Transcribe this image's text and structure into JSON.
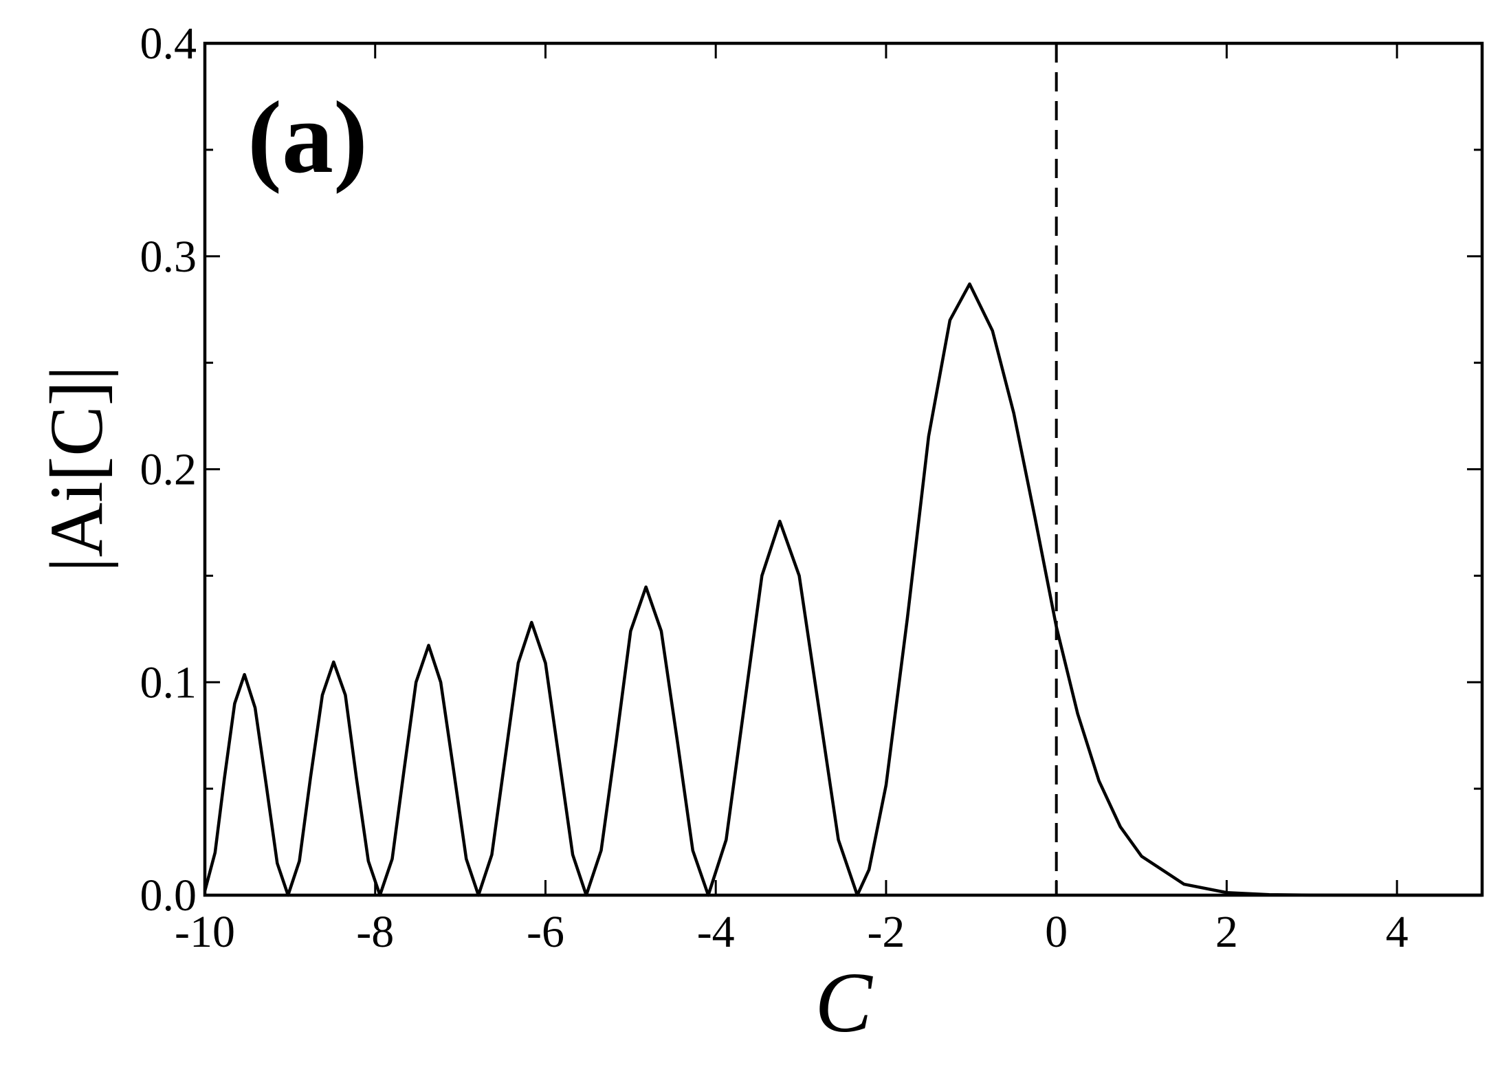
{
  "chart_data": {
    "type": "line",
    "panel_label": "(a)",
    "x_label": "C",
    "y_label": "|Ai[C]|",
    "color": "#000000",
    "x": [
      -10,
      -9.88,
      -9.77,
      -9.65,
      -9.535,
      -9.41,
      -9.28,
      -9.15,
      -9.023,
      -8.89,
      -8.76,
      -8.62,
      -8.488,
      -8.35,
      -8.22,
      -8.08,
      -7.944,
      -7.8,
      -7.66,
      -7.52,
      -7.372,
      -7.23,
      -7.08,
      -6.93,
      -6.787,
      -6.63,
      -6.475,
      -6.32,
      -6.163,
      -6,
      -5.84,
      -5.68,
      -5.521,
      -5.346,
      -5.17,
      -5,
      -4.82,
      -4.64,
      -4.45,
      -4.27,
      -4.088,
      -3.878,
      -3.668,
      -3.458,
      -3.248,
      -3.02,
      -2.79,
      -2.56,
      -2.338,
      -2.2,
      -2,
      -1.75,
      -1.5,
      -1.25,
      -1.019,
      -0.75,
      -0.5,
      -0.25,
      0,
      0.25,
      0.5,
      0.75,
      1,
      1.5,
      2,
      2.5,
      3,
      4,
      5
    ],
    "values": [
      0.002,
      0.02,
      0.055,
      0.09,
      0.1036,
      0.088,
      0.052,
      0.015,
      0,
      0.016,
      0.055,
      0.094,
      0.1095,
      0.094,
      0.055,
      0.016,
      0,
      0.017,
      0.059,
      0.1,
      0.1173,
      0.1,
      0.059,
      0.017,
      0,
      0.019,
      0.064,
      0.109,
      0.1281,
      0.109,
      0.064,
      0.019,
      0,
      0.021,
      0.072,
      0.124,
      0.1447,
      0.124,
      0.072,
      0.021,
      0,
      0.026,
      0.088,
      0.15,
      0.1756,
      0.15,
      0.088,
      0.026,
      0,
      0.012,
      0.0517,
      0.13,
      0.2155,
      0.27,
      0.287,
      0.265,
      0.2263,
      0.177,
      0.126,
      0.0852,
      0.0537,
      0.0322,
      0.0183,
      0.00514,
      0.00122,
      0.00025,
      4e-05,
      0,
      0
    ],
    "xlim": [
      -10,
      5
    ],
    "xticks": [
      -10,
      -8,
      -6,
      -4,
      -2,
      0,
      2,
      4
    ],
    "ylim": [
      0,
      0.4
    ],
    "yticks": [
      {
        "value": 0,
        "label": "0.0"
      },
      0.1,
      0.2,
      0.3,
      0.4
    ],
    "yminorticks": [
      0.05,
      0.15,
      0.25,
      0.35
    ],
    "vline": 0,
    "grid": false
  }
}
